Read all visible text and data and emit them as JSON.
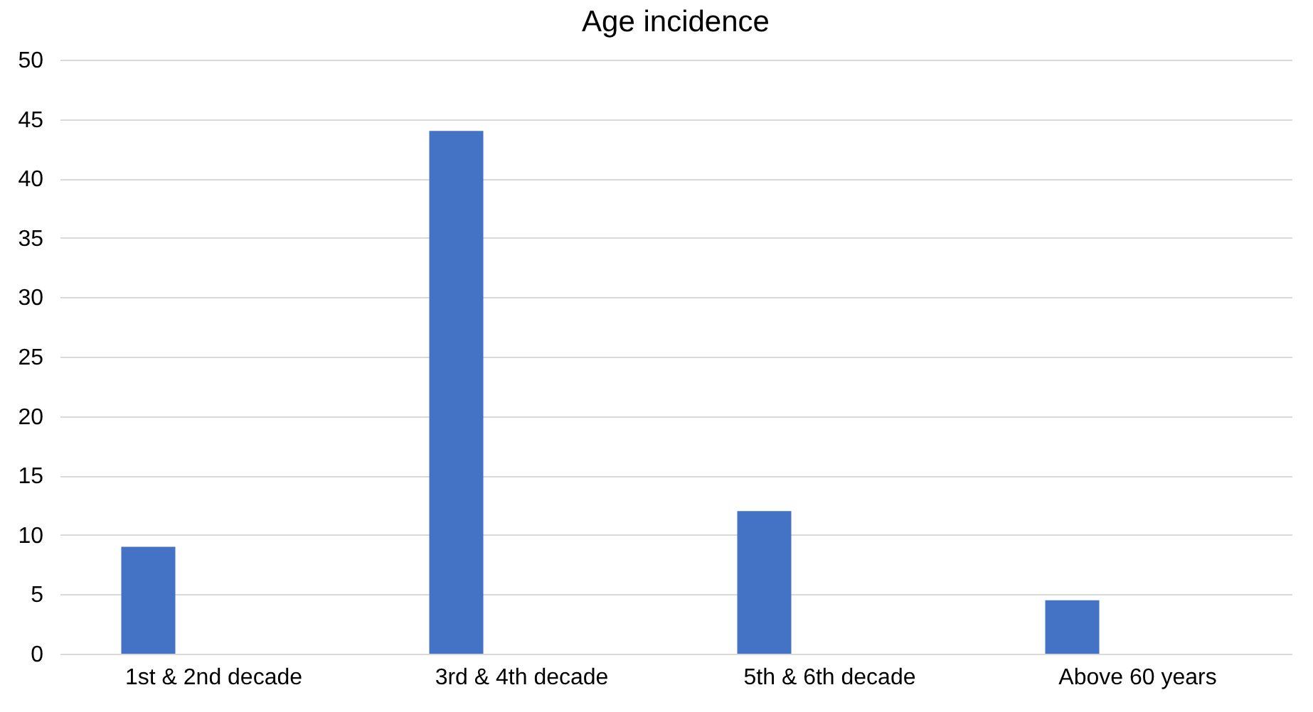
{
  "chart_data": {
    "type": "bar",
    "title": "Age incidence",
    "categories": [
      "1st & 2nd decade",
      "3rd & 4th decade",
      "5th & 6th decade",
      "Above 60 years"
    ],
    "values": [
      9,
      44,
      12,
      4.5
    ],
    "color": "#4472c4",
    "ylim": [
      0,
      50
    ],
    "yticks": [
      0,
      5,
      10,
      15,
      20,
      25,
      30,
      35,
      40,
      45,
      50
    ],
    "grid": "y"
  }
}
